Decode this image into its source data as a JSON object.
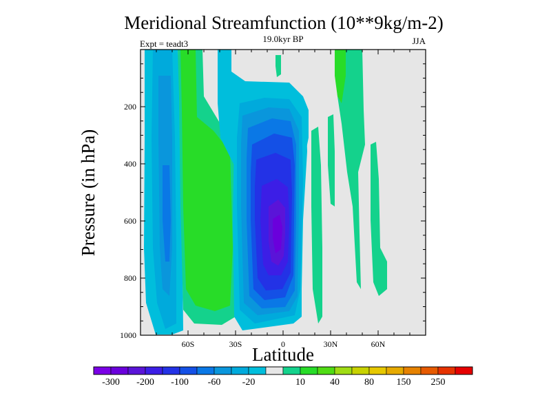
{
  "chart_data": {
    "type": "contour",
    "title": "Meridional Streamfunction (10**9kg/m-2)",
    "subtitle_center": "19.0kyr BP",
    "subtitle_left": "Expt = teadt3",
    "subtitle_right": "JJA",
    "xlabel": "Latitude",
    "ylabel": "Pressure (in hPa)",
    "xlim": [
      -90,
      90
    ],
    "ylim": [
      1000,
      0
    ],
    "x_ticks": [
      {
        "value": -60,
        "label": "60S"
      },
      {
        "value": -30,
        "label": "30S"
      },
      {
        "value": 0,
        "label": "0"
      },
      {
        "value": 30,
        "label": "30N"
      },
      {
        "value": 60,
        "label": "60N"
      }
    ],
    "y_ticks": [
      {
        "value": 200,
        "label": "200"
      },
      {
        "value": 400,
        "label": "400"
      },
      {
        "value": 600,
        "label": "600"
      },
      {
        "value": 800,
        "label": "800"
      },
      {
        "value": 1000,
        "label": "1000"
      }
    ],
    "background_color": "#e6e6e6",
    "colorbar": {
      "colors": [
        "#7a00e6",
        "#6a00dc",
        "#5a14d8",
        "#3c1ee6",
        "#2332e6",
        "#1450e6",
        "#0a78e6",
        "#0a96dc",
        "#00aadc",
        "#00bedc",
        "#e6e6e6",
        "#14d28c",
        "#28dc28",
        "#50dc14",
        "#a0dc14",
        "#c8d200",
        "#e6c800",
        "#e6aa00",
        "#e68200",
        "#e65a00",
        "#e63200",
        "#e60000"
      ],
      "labels": [
        "-300",
        "-200",
        "-100",
        "-60",
        "-20",
        "10",
        "40",
        "80",
        "150",
        "250"
      ]
    },
    "regions": [
      {
        "name": "sh-polar-cell",
        "fill_level": -20,
        "lat_range": [
          -88,
          -62
        ],
        "p_range": [
          30,
          990
        ]
      },
      {
        "name": "sh-polar-core",
        "fill_level": -60,
        "lat_range": [
          -84,
          -66
        ],
        "p_range": [
          30,
          900
        ]
      },
      {
        "name": "sh-ferrel-cell",
        "fill_level": 10,
        "lat_range": [
          -64,
          -26
        ],
        "p_range": [
          0,
          960
        ]
      },
      {
        "name": "sh-ferrel-core",
        "fill_level": 40,
        "lat_range": [
          -58,
          -31
        ],
        "p_range": [
          160,
          900
        ]
      },
      {
        "name": "winter-hadley-cell",
        "fill_level": -300,
        "lat_range": [
          -28,
          10
        ],
        "p_range": [
          0,
          1000
        ],
        "minimum_at": [
          -5,
          700
        ]
      },
      {
        "name": "nh-weak-positive-cell",
        "fill_level": 10,
        "lat_range": [
          10,
          40
        ],
        "p_range": [
          0,
          960
        ]
      },
      {
        "name": "nh-midlatitude-cell",
        "fill_level": 10,
        "lat_range": [
          32,
          66
        ],
        "p_range": [
          0,
          880
        ]
      }
    ]
  }
}
